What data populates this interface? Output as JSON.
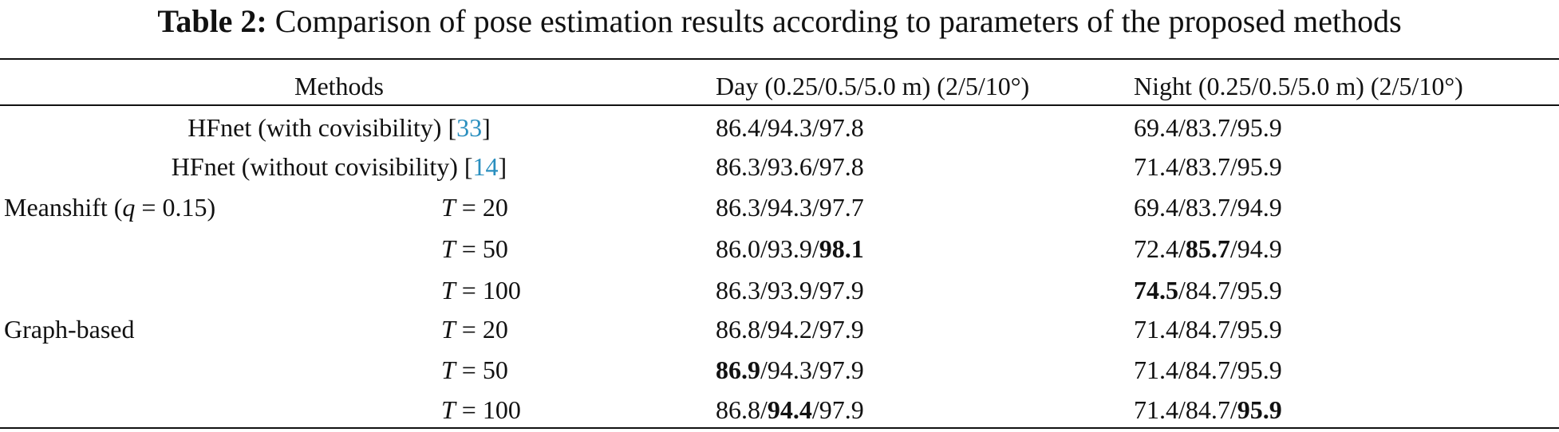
{
  "caption": {
    "label": "Table 2:",
    "text": "Comparison of pose estimation results according to parameters of the proposed methods"
  },
  "columns": {
    "methods": "Methods",
    "day": "Day (0.25/0.5/5.0 m) (2/5/10°)",
    "night": "Night (0.25/0.5/5.0 m) (2/5/10°)"
  },
  "rows": [
    {
      "method": "HFnet (with covisibility) [",
      "cite": "33",
      "method_end": "]",
      "day": "86.4/94.3/97.8",
      "night": "69.4/83.7/95.9"
    },
    {
      "method": "HFnet (without covisibility) [",
      "cite": "14",
      "method_end": "]",
      "day": "86.3/93.6/97.8",
      "night": "71.4/83.7/95.9"
    },
    {
      "group": "Meanshift (",
      "group_var": "q",
      "group_val": " = 0.15)",
      "param_var": "T",
      "param_val": " = 20",
      "day": "86.3/94.3/97.7",
      "night": "69.4/83.7/94.9"
    },
    {
      "param_var": "T",
      "param_val": " = 50",
      "day_a": "86.0/93.9/",
      "day_b": "98.1",
      "night_a": "72.4/",
      "night_b": "85.7",
      "night_c": "/94.9"
    },
    {
      "param_var": "T",
      "param_val": " = 100",
      "day": "86.3/93.9/97.9",
      "night_b": "74.5",
      "night_c": "/84.7/95.9"
    },
    {
      "group": "Graph-based",
      "param_var": "T",
      "param_val": " = 20",
      "day": "86.8/94.2/97.9",
      "night": "71.4/84.7/95.9"
    },
    {
      "param_var": "T",
      "param_val": " = 50",
      "day_b": "86.9",
      "day_c": "/94.3/97.9",
      "night": "71.4/84.7/95.9"
    },
    {
      "param_var": "T",
      "param_val": " = 100",
      "day_a": "86.8/",
      "day_b": "94.4",
      "day_c": "/97.9",
      "night_a": "71.4/84.7/",
      "night_b": "95.9"
    }
  ]
}
